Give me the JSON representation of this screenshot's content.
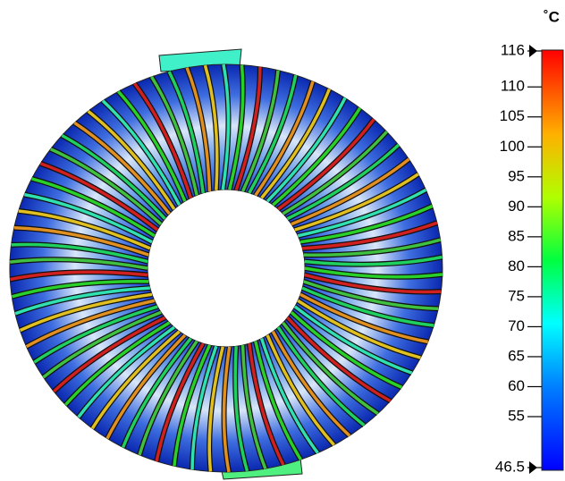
{
  "colorbar": {
    "unit": "˚C",
    "ticks": [
      116,
      110,
      105,
      100,
      95,
      90,
      85,
      80,
      75,
      70,
      65,
      60,
      55,
      46.5
    ]
  }
}
